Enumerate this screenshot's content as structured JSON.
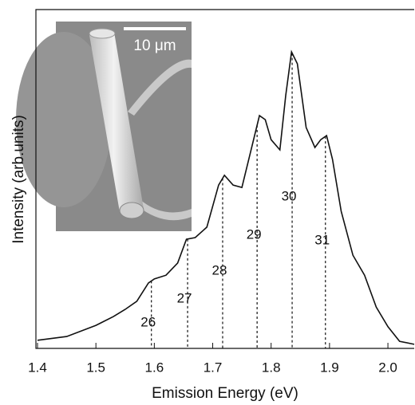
{
  "chart_data": {
    "type": "line",
    "x_label": "Emission Energy (eV)",
    "y_label": "Intensity (arb.units)",
    "xlim": [
      1.4,
      2.045
    ],
    "ylim": [
      0,
      1
    ],
    "xticks": [
      {
        "value": 1.4,
        "label": "1.4"
      },
      1.5,
      1.6,
      1.7,
      1.8,
      1.9,
      {
        "value": 2.0,
        "label": "2.0"
      }
    ],
    "series": [
      {
        "color": "#111111",
        "x": [
          1.4,
          1.45,
          1.5,
          1.53,
          1.55,
          1.57,
          1.59,
          1.6,
          1.62,
          1.64,
          1.655,
          1.67,
          1.69,
          1.71,
          1.72,
          1.735,
          1.75,
          1.765,
          1.78,
          1.79,
          1.8,
          1.815,
          1.825,
          1.835,
          1.845,
          1.86,
          1.875,
          1.885,
          1.895,
          1.905,
          1.92,
          1.94,
          1.96,
          1.98,
          2.0,
          2.02,
          2.045
        ],
        "values": [
          0.024,
          0.035,
          0.068,
          0.094,
          0.115,
          0.139,
          0.193,
          0.205,
          0.216,
          0.252,
          0.322,
          0.327,
          0.358,
          0.482,
          0.511,
          0.482,
          0.475,
          0.581,
          0.687,
          0.675,
          0.616,
          0.586,
          0.746,
          0.875,
          0.84,
          0.652,
          0.593,
          0.616,
          0.628,
          0.558,
          0.405,
          0.275,
          0.216,
          0.122,
          0.064,
          0.021,
          0.012
        ]
      }
    ],
    "modes": [
      {
        "label": "26",
        "x": 1.595
      },
      {
        "label": "27",
        "x": 1.657
      },
      {
        "label": "28",
        "x": 1.717
      },
      {
        "label": "29",
        "x": 1.776
      },
      {
        "label": "30",
        "x": 1.836
      },
      {
        "label": "31",
        "x": 1.893
      }
    ],
    "inset": {
      "scale_label": "10 μm"
    }
  }
}
